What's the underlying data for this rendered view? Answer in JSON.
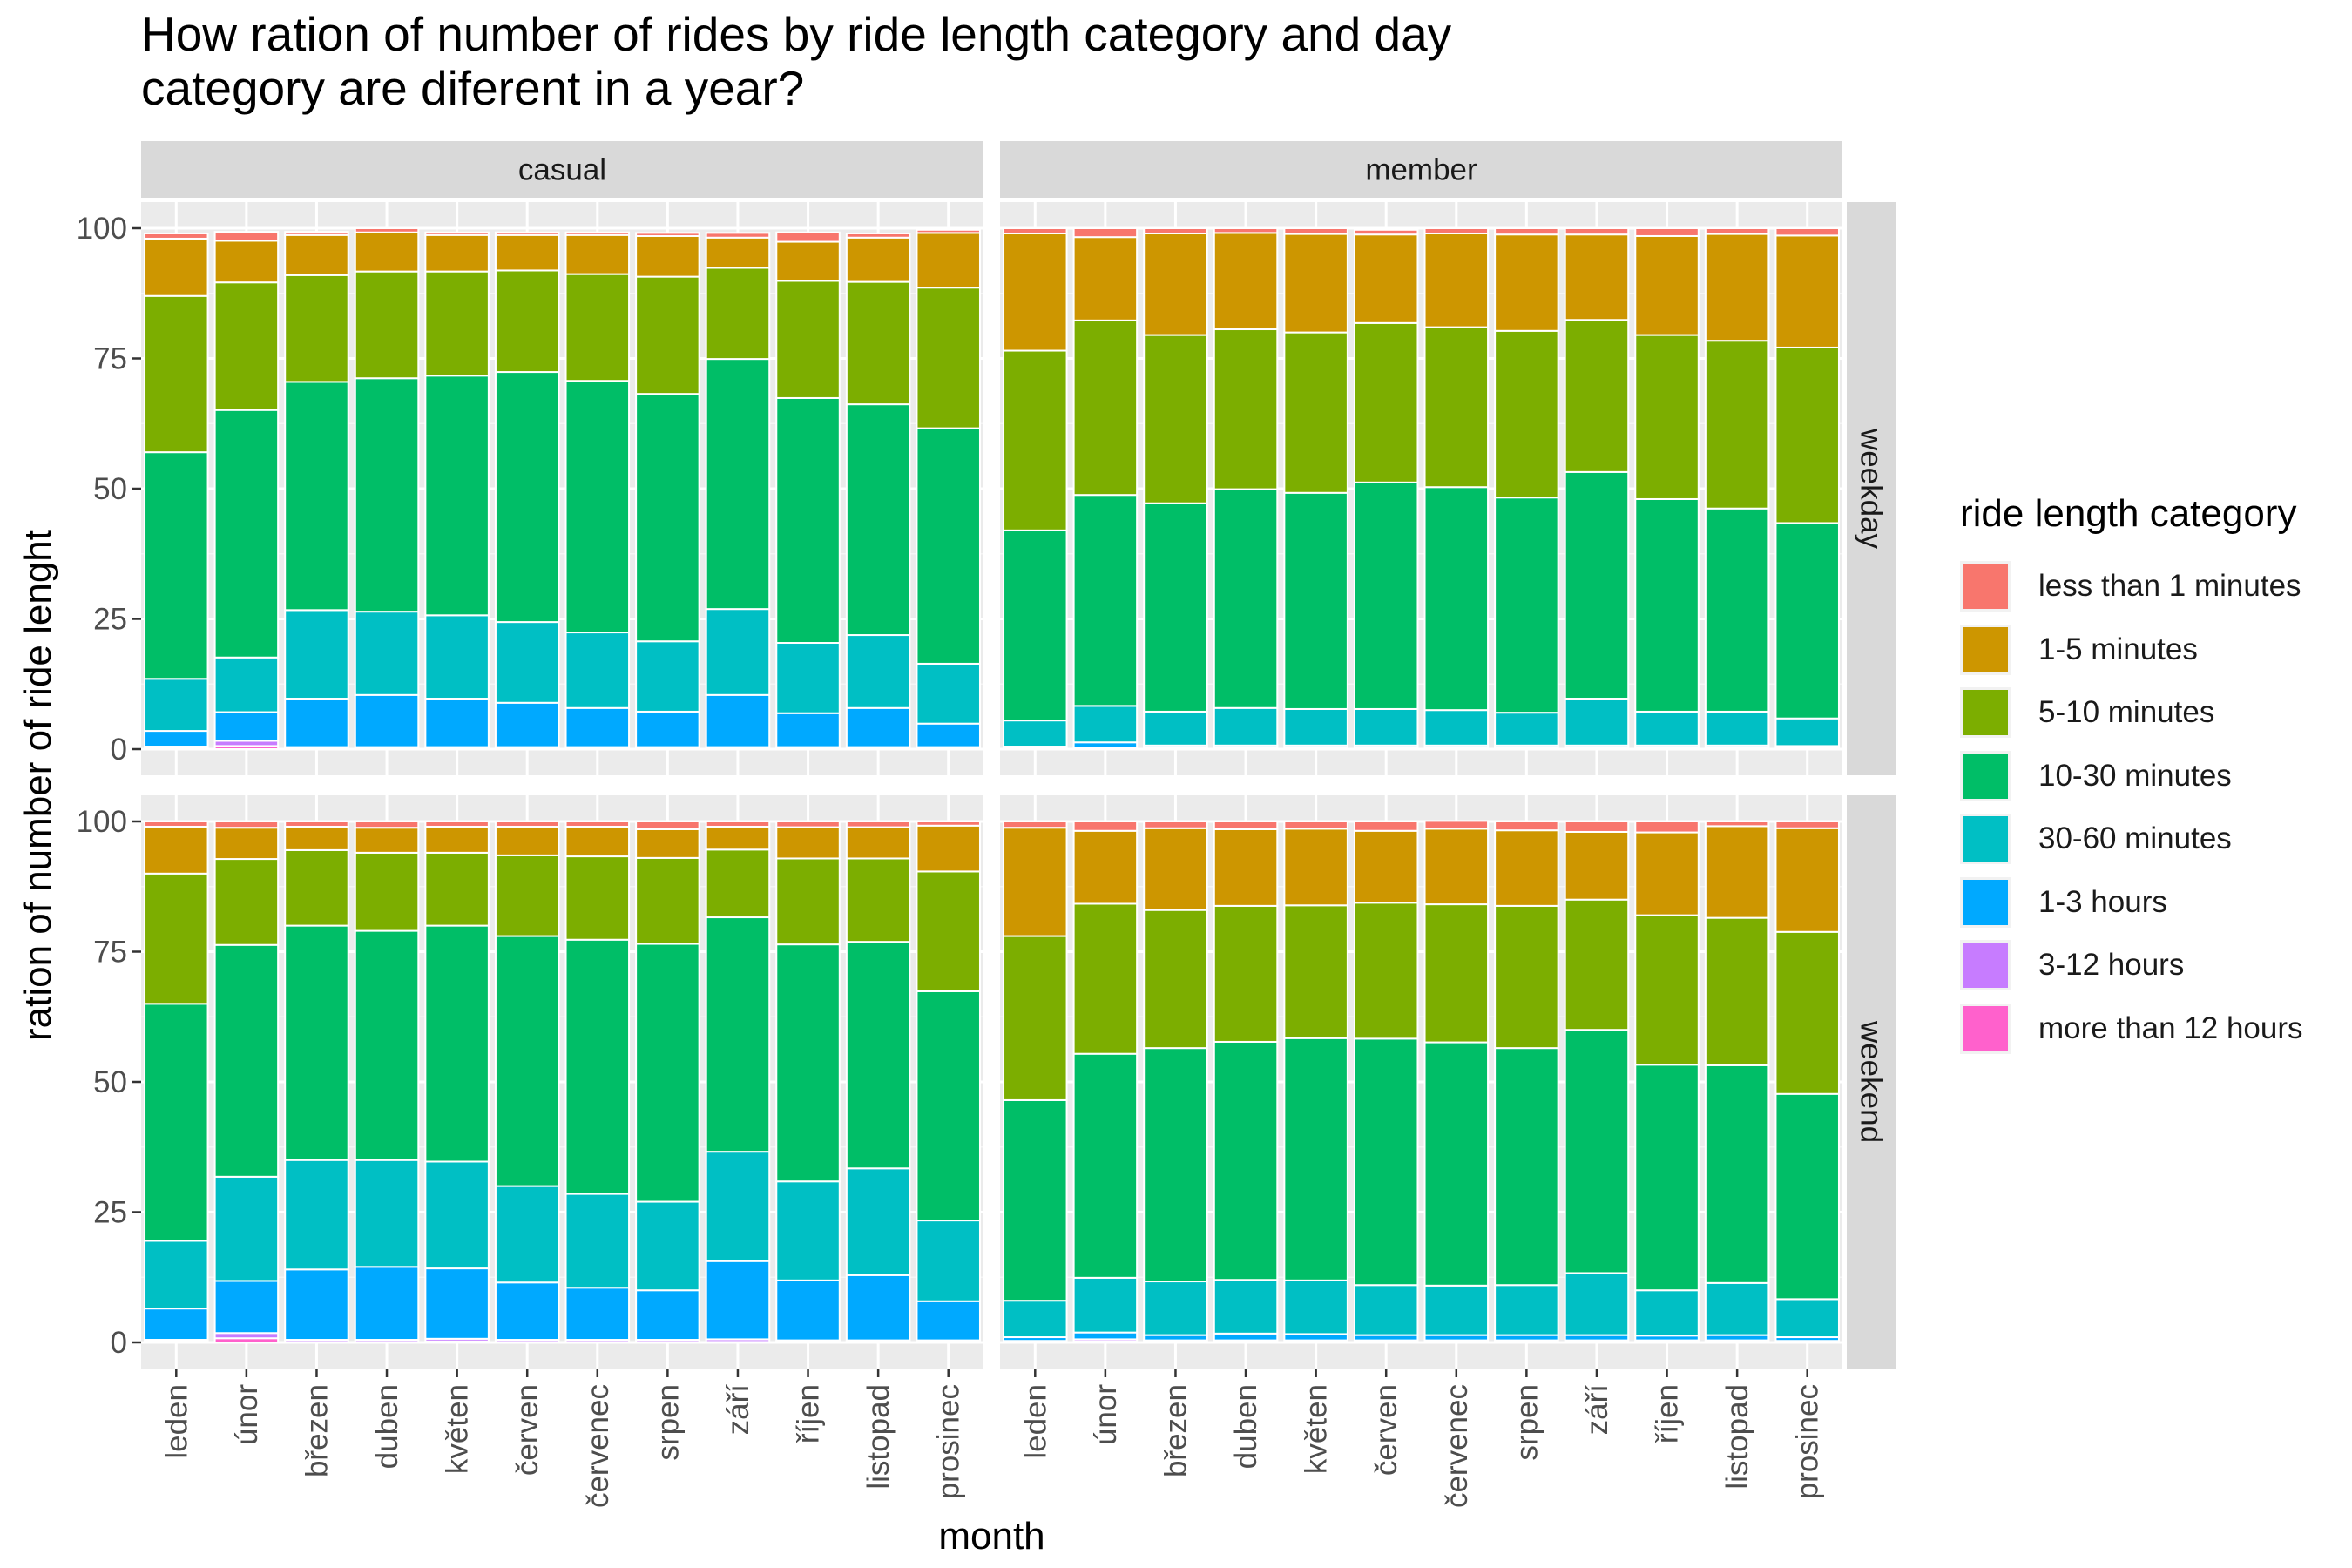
{
  "chart_data": {
    "type": "bar",
    "stacked": true,
    "title": "How ration of number of rides by ride length category and day\ncategory are diferent in a year?",
    "xlabel": "month",
    "ylabel": "ration of number of ride lenght",
    "ylim": [
      0,
      100
    ],
    "yticks": [
      "0",
      "25",
      "50",
      "75",
      "100"
    ],
    "categories": [
      "leden",
      "únor",
      "březen",
      "duben",
      "květen",
      "červen",
      "červenec",
      "srpen",
      "září",
      "říjen",
      "listopad",
      "prosinec"
    ],
    "facet_columns": [
      "casual",
      "member"
    ],
    "facet_rows": [
      "weekday",
      "weekend"
    ],
    "legend": {
      "title": "ride length category",
      "position": "right",
      "items": [
        {
          "name": "less than 1 minutes",
          "color": "#F8766D"
        },
        {
          "name": "1-5 minutes",
          "color": "#CD9600"
        },
        {
          "name": "5-10 minutes",
          "color": "#7CAE00"
        },
        {
          "name": "10-30 minutes",
          "color": "#00BE67"
        },
        {
          "name": "30-60 minutes",
          "color": "#00BFC4"
        },
        {
          "name": "1-3 hours",
          "color": "#00A9FF"
        },
        {
          "name": "3-12 hours",
          "color": "#C77CFF"
        },
        {
          "name": "more than 12 hours",
          "color": "#FF61CC"
        }
      ]
    },
    "stack_order_bottom_to_top": [
      "more than 12 hours",
      "3-12 hours",
      "1-3 hours",
      "30-60 minutes",
      "10-30 minutes",
      "5-10 minutes",
      "1-5 minutes",
      "less than 1 minutes"
    ],
    "panels": [
      {
        "column": "casual",
        "row": "weekday",
        "series": [
          {
            "name": "more than 12 hours",
            "values": [
              0.2,
              0.6,
              0.1,
              0.1,
              0.1,
              0.1,
              0.1,
              0.1,
              0.1,
              0.1,
              0.1,
              0.1
            ]
          },
          {
            "name": "3-12 hours",
            "values": [
              0.3,
              1.0,
              0.3,
              0.3,
              0.3,
              0.3,
              0.3,
              0.3,
              0.3,
              0.3,
              0.3,
              0.3
            ]
          },
          {
            "name": "1-3 hours",
            "values": [
              3.0,
              5.5,
              9.3,
              10.0,
              9.3,
              8.5,
              7.5,
              6.8,
              10.0,
              6.5,
              7.5,
              4.5
            ]
          },
          {
            "name": "30-60 minutes",
            "values": [
              10.0,
              10.5,
              17.0,
              16.0,
              16.0,
              15.5,
              14.5,
              13.5,
              16.5,
              13.5,
              14.0,
              11.5
            ]
          },
          {
            "name": "10-30 minutes",
            "values": [
              43.5,
              47.5,
              43.8,
              44.8,
              46.0,
              48.0,
              48.3,
              47.5,
              48.0,
              47.0,
              44.3,
              45.2
            ]
          },
          {
            "name": "5-10 minutes",
            "values": [
              30.0,
              24.5,
              20.5,
              20.5,
              20.0,
              19.5,
              20.5,
              22.5,
              17.5,
              22.5,
              23.5,
              27.0
            ]
          },
          {
            "name": "1-5 minutes",
            "values": [
              11.0,
              8.0,
              7.7,
              7.5,
              7.0,
              6.8,
              7.5,
              7.8,
              5.8,
              7.5,
              8.5,
              10.5
            ]
          },
          {
            "name": "less than 1 minutes",
            "values": [
              1.0,
              1.7,
              0.6,
              0.8,
              0.5,
              0.5,
              0.5,
              0.6,
              0.9,
              1.8,
              0.8,
              0.6
            ]
          }
        ]
      },
      {
        "column": "member",
        "row": "weekday",
        "series": [
          {
            "name": "more than 12 hours",
            "values": [
              0.1,
              0.1,
              0.1,
              0.1,
              0.1,
              0.1,
              0.1,
              0.1,
              0.1,
              0.1,
              0.1,
              0.1
            ]
          },
          {
            "name": "3-12 hours",
            "values": [
              0.1,
              0.2,
              0.1,
              0.1,
              0.1,
              0.1,
              0.1,
              0.1,
              0.1,
              0.1,
              0.1,
              0.1
            ]
          },
          {
            "name": "1-3 hours",
            "values": [
              0.3,
              1.0,
              0.5,
              0.5,
              0.5,
              0.5,
              0.5,
              0.5,
              0.5,
              0.5,
              0.5,
              0.4
            ]
          },
          {
            "name": "30-60 minutes",
            "values": [
              5.0,
              7.0,
              6.5,
              7.2,
              7.0,
              7.0,
              6.8,
              6.3,
              9.0,
              6.5,
              6.5,
              5.3
            ]
          },
          {
            "name": "10-30 minutes",
            "values": [
              36.5,
              40.5,
              40.0,
              42.0,
              41.5,
              43.5,
              42.8,
              41.3,
              43.5,
              40.8,
              39.0,
              37.5
            ]
          },
          {
            "name": "5-10 minutes",
            "values": [
              34.5,
              33.5,
              32.3,
              30.7,
              30.8,
              30.6,
              30.7,
              32.0,
              29.2,
              31.5,
              32.2,
              33.7
            ]
          },
          {
            "name": "1-5 minutes",
            "values": [
              22.5,
              16.0,
              19.5,
              18.5,
              18.9,
              17.0,
              18.0,
              18.5,
              16.4,
              19.0,
              20.5,
              21.5
            ]
          },
          {
            "name": "less than 1 minutes",
            "values": [
              1.0,
              1.7,
              1.0,
              0.9,
              1.1,
              0.9,
              1.0,
              1.2,
              1.2,
              1.5,
              1.1,
              1.4
            ]
          }
        ]
      },
      {
        "column": "casual",
        "row": "weekend",
        "series": [
          {
            "name": "more than 12 hours",
            "values": [
              0.2,
              0.8,
              0.1,
              0.1,
              0.2,
              0.1,
              0.1,
              0.1,
              0.1,
              0.1,
              0.1,
              0.1
            ]
          },
          {
            "name": "3-12 hours",
            "values": [
              0.3,
              1.0,
              0.4,
              0.4,
              0.5,
              0.4,
              0.4,
              0.4,
              0.5,
              0.3,
              0.3,
              0.3
            ]
          },
          {
            "name": "1-3 hours",
            "values": [
              6.0,
              10.0,
              13.5,
              14.0,
              13.5,
              11.0,
              10.0,
              9.5,
              15.0,
              11.5,
              12.5,
              7.5
            ]
          },
          {
            "name": "30-60 minutes",
            "values": [
              13.0,
              20.0,
              21.0,
              20.5,
              20.5,
              18.5,
              18.0,
              17.0,
              21.0,
              19.0,
              20.5,
              15.5
            ]
          },
          {
            "name": "10-30 minutes",
            "values": [
              45.5,
              44.5,
              45.0,
              44.0,
              45.3,
              48.0,
              48.8,
              49.5,
              45.0,
              45.5,
              43.5,
              44.0
            ]
          },
          {
            "name": "5-10 minutes",
            "values": [
              25.0,
              16.5,
              14.5,
              15.0,
              14.0,
              15.5,
              16.0,
              16.5,
              13.0,
              16.5,
              16.0,
              23.0
            ]
          },
          {
            "name": "1-5 minutes",
            "values": [
              9.0,
              6.0,
              4.5,
              4.8,
              5.0,
              5.5,
              5.7,
              5.5,
              4.4,
              6.0,
              6.0,
              8.8
            ]
          },
          {
            "name": "less than 1 minutes",
            "values": [
              1.0,
              1.2,
              1.0,
              1.2,
              1.0,
              1.0,
              1.0,
              1.5,
              1.0,
              1.1,
              1.1,
              0.8
            ]
          }
        ]
      },
      {
        "column": "member",
        "row": "weekend",
        "series": [
          {
            "name": "more than 12 hours",
            "values": [
              0.1,
              0.2,
              0.1,
              0.1,
              0.1,
              0.1,
              0.1,
              0.1,
              0.1,
              0.1,
              0.1,
              0.1
            ]
          },
          {
            "name": "3-12 hours",
            "values": [
              0.2,
              0.4,
              0.3,
              0.3,
              0.3,
              0.3,
              0.3,
              0.3,
              0.3,
              0.3,
              0.3,
              0.2
            ]
          },
          {
            "name": "1-3 hours",
            "values": [
              0.7,
              1.3,
              1.0,
              1.3,
              1.2,
              1.0,
              1.0,
              1.0,
              1.0,
              0.9,
              1.0,
              0.7
            ]
          },
          {
            "name": "30-60 minutes",
            "values": [
              7.0,
              10.5,
              10.3,
              10.3,
              10.3,
              9.6,
              9.5,
              9.6,
              11.9,
              8.7,
              10.0,
              7.3
            ]
          },
          {
            "name": "10-30 minutes",
            "values": [
              38.5,
              43.0,
              44.8,
              45.7,
              46.5,
              47.3,
              46.7,
              45.5,
              46.7,
              43.3,
              41.8,
              39.4
            ]
          },
          {
            "name": "5-10 minutes",
            "values": [
              31.5,
              28.8,
              26.5,
              26.1,
              25.5,
              26.1,
              26.5,
              27.3,
              25.0,
              28.7,
              28.3,
              31.1
            ]
          },
          {
            "name": "1-5 minutes",
            "values": [
              20.8,
              14.0,
              15.7,
              14.7,
              14.7,
              13.8,
              14.5,
              14.5,
              13.0,
              15.9,
              17.6,
              19.9
            ]
          },
          {
            "name": "less than 1 minutes",
            "values": [
              1.2,
              1.8,
              1.3,
              1.5,
              1.4,
              1.8,
              1.5,
              1.7,
              2.0,
              2.1,
              0.9,
              1.3
            ]
          }
        ]
      }
    ]
  }
}
